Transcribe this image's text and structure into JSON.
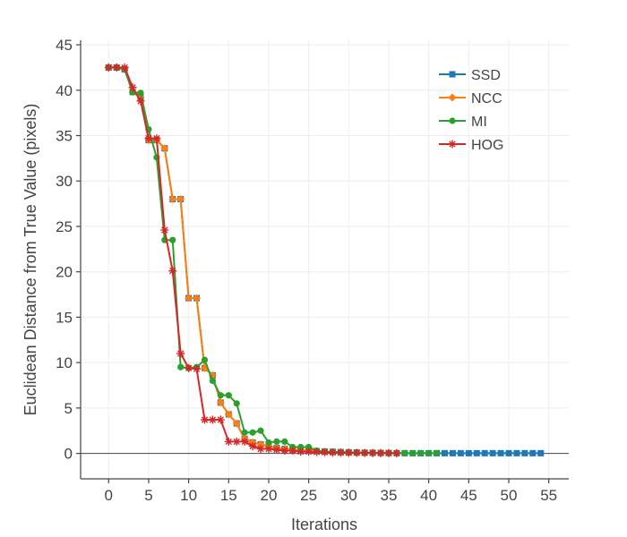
{
  "chart_data": {
    "type": "line",
    "title": "",
    "xlabel": "Iterations",
    "ylabel": "Euclidean Distance from True Value (pixels)",
    "xlim": [
      -3.5,
      57.5
    ],
    "ylim": [
      -2.8,
      45.5
    ],
    "xticks": [
      0,
      5,
      10,
      15,
      20,
      25,
      30,
      35,
      40,
      45,
      50,
      55
    ],
    "yticks": [
      0,
      5,
      10,
      15,
      20,
      25,
      30,
      35,
      40,
      45
    ],
    "grid": true,
    "legend_position": "top-right",
    "series": [
      {
        "name": "SSD",
        "color": "#1f77b4",
        "marker": "square",
        "x": [
          0,
          1,
          2,
          3,
          4,
          5,
          6,
          7,
          8,
          9,
          10,
          11,
          12,
          13,
          14,
          15,
          16,
          17,
          18,
          19,
          20,
          21,
          22,
          23,
          24,
          25,
          26,
          27,
          28,
          29,
          30,
          31,
          32,
          33,
          34,
          35,
          36,
          37,
          38,
          39,
          40,
          41,
          42,
          43,
          44,
          45,
          46,
          47,
          48,
          49,
          50,
          51,
          52,
          53,
          54
        ],
        "y": [
          42.5,
          42.5,
          42.3,
          39.8,
          39.2,
          34.5,
          34.5,
          33.6,
          28.0,
          28.0,
          17.1,
          17.1,
          9.4,
          8.6,
          5.6,
          4.3,
          3.3,
          1.6,
          1.2,
          1.0,
          0.8,
          0.6,
          0.5,
          0.4,
          0.35,
          0.3,
          0.25,
          0.2,
          0.18,
          0.15,
          0.12,
          0.1,
          0.08,
          0.07,
          0.05,
          0.04,
          0.03,
          0.02,
          0.02,
          0.02,
          0.02,
          0.02,
          0.02,
          0.02,
          0.02,
          0.02,
          0.02,
          0.02,
          0.02,
          0.02,
          0.02,
          0.02,
          0.02,
          0.02,
          0.02
        ]
      },
      {
        "name": "NCC",
        "color": "#ff7f0e",
        "marker": "diamond",
        "x": [
          0,
          1,
          2,
          3,
          4,
          5,
          6,
          7,
          8,
          9,
          10,
          11,
          12,
          13,
          14,
          15,
          16,
          17,
          18,
          19,
          20,
          21,
          22,
          23,
          24,
          25,
          26,
          27,
          28,
          29,
          30,
          31,
          32,
          33,
          34,
          35,
          36
        ],
        "y": [
          42.5,
          42.5,
          42.3,
          39.8,
          39.2,
          34.5,
          34.5,
          33.6,
          28.0,
          28.0,
          17.1,
          17.1,
          9.4,
          8.6,
          5.6,
          4.3,
          3.3,
          1.6,
          1.2,
          1.0,
          0.8,
          0.6,
          0.5,
          0.4,
          0.35,
          0.3,
          0.25,
          0.2,
          0.18,
          0.15,
          0.12,
          0.1,
          0.08,
          0.07,
          0.05,
          0.04,
          0.03
        ]
      },
      {
        "name": "MI",
        "color": "#2ca02c",
        "marker": "circle",
        "x": [
          0,
          1,
          2,
          3,
          4,
          5,
          6,
          7,
          8,
          9,
          10,
          11,
          12,
          13,
          14,
          15,
          16,
          17,
          18,
          19,
          20,
          21,
          22,
          23,
          24,
          25,
          26,
          27,
          28,
          29,
          30,
          31,
          32,
          33,
          34,
          35,
          36,
          37,
          38,
          39,
          40,
          41
        ],
        "y": [
          42.5,
          42.5,
          42.3,
          39.8,
          39.7,
          35.7,
          32.6,
          23.5,
          23.5,
          9.5,
          9.4,
          9.5,
          10.3,
          8.0,
          6.4,
          6.4,
          5.5,
          2.3,
          2.3,
          2.5,
          1.2,
          1.3,
          1.3,
          0.7,
          0.7,
          0.7,
          0.3,
          0.2,
          0.15,
          0.12,
          0.1,
          0.08,
          0.06,
          0.05,
          0.04,
          0.03,
          0.03,
          0.02,
          0.02,
          0.02,
          0.02,
          0.02
        ]
      },
      {
        "name": "HOG",
        "color": "#d62728",
        "marker": "asterisk",
        "x": [
          0,
          1,
          2,
          3,
          4,
          5,
          6,
          7,
          8,
          9,
          10,
          11,
          12,
          13,
          14,
          15,
          16,
          17,
          18,
          19,
          20,
          21,
          22,
          23,
          24,
          25,
          26,
          27,
          28,
          29,
          30,
          31,
          32,
          33,
          34,
          35,
          36
        ],
        "y": [
          42.5,
          42.5,
          42.5,
          40.3,
          38.8,
          34.7,
          34.7,
          24.6,
          20.1,
          11.0,
          9.4,
          9.3,
          3.7,
          3.7,
          3.7,
          1.3,
          1.3,
          1.3,
          0.8,
          0.5,
          0.5,
          0.4,
          0.3,
          0.3,
          0.2,
          0.2,
          0.15,
          0.12,
          0.1,
          0.08,
          0.07,
          0.06,
          0.05,
          0.04,
          0.03,
          0.03,
          0.02
        ]
      }
    ]
  }
}
